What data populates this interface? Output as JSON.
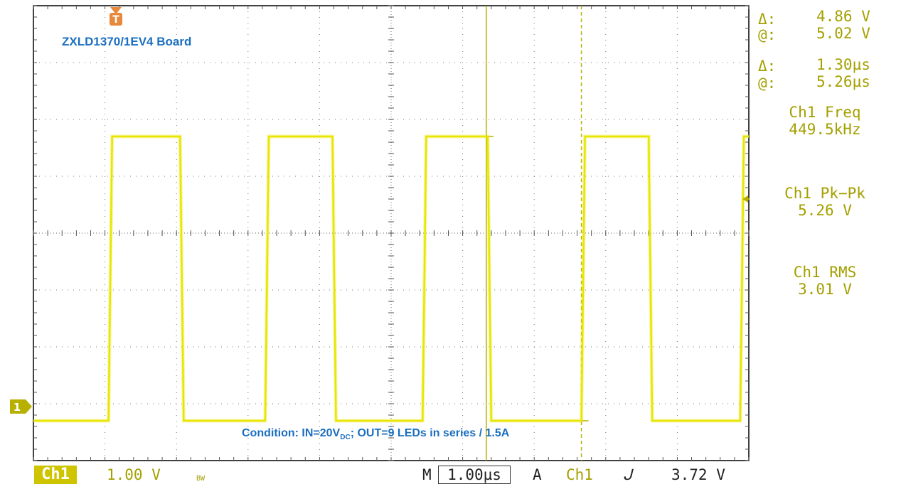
{
  "chart_data": {
    "type": "line",
    "title": "ZXLD1370/1EV4 Board",
    "annotation": "Condition: IN=20V_DC; OUT=9 LEDs in series / 1.5A",
    "x_unit": "µs",
    "y_unit": "V",
    "xlim": [
      0,
      10
    ],
    "ylim": [
      -0.7,
      7.3
    ],
    "x_divisions": 10,
    "y_divisions": 8,
    "grid": true,
    "series": [
      {
        "color": "#e8e600",
        "x": [
          0,
          1.05,
          1.1,
          2.05,
          2.1,
          3.24,
          3.29,
          4.18,
          4.23,
          5.44,
          5.49,
          6.35,
          6.4,
          7.66,
          7.71,
          8.6,
          8.65,
          9.88,
          9.93,
          10
        ],
        "y": [
          0,
          0,
          5,
          5,
          0,
          0,
          5,
          5,
          0,
          0,
          5,
          5,
          0,
          0,
          5,
          5,
          0,
          0,
          5,
          5
        ]
      }
    ],
    "cursors": {
      "solid_x": 6.33,
      "dashed_x": 7.66
    }
  },
  "measurements": {
    "volt_delta_label": "Δ:",
    "volt_delta_value": "4.86 V",
    "volt_at_label": "@:",
    "volt_at_value": "5.02 V",
    "time_delta_label": "Δ:",
    "time_delta_value": "1.30µs",
    "time_at_label": "@:",
    "time_at_value": "5.26µs",
    "freq_label": "Ch1 Freq",
    "freq_value": "449.5kHz",
    "pkpk_label": "Ch1 Pk−Pk",
    "pkpk_value": "5.26 V",
    "rms_label": "Ch1 RMS",
    "rms_value": "3.01 V"
  },
  "status_bar": {
    "channel": "Ch1",
    "volts_per_div": "1.00 V",
    "bw": "BW",
    "time_prefix": "M",
    "time_per_div": "1.00µs",
    "trigger_mode": "A",
    "trigger_channel": "Ch1",
    "trigger_level": "3.72 V"
  },
  "markers": {
    "trigger": "T",
    "channel": "1"
  },
  "colors": {
    "trace": "#e8e600",
    "text": "#a4a000",
    "annotation": "#1b6fc0",
    "trigger_marker": "#e8883a"
  }
}
